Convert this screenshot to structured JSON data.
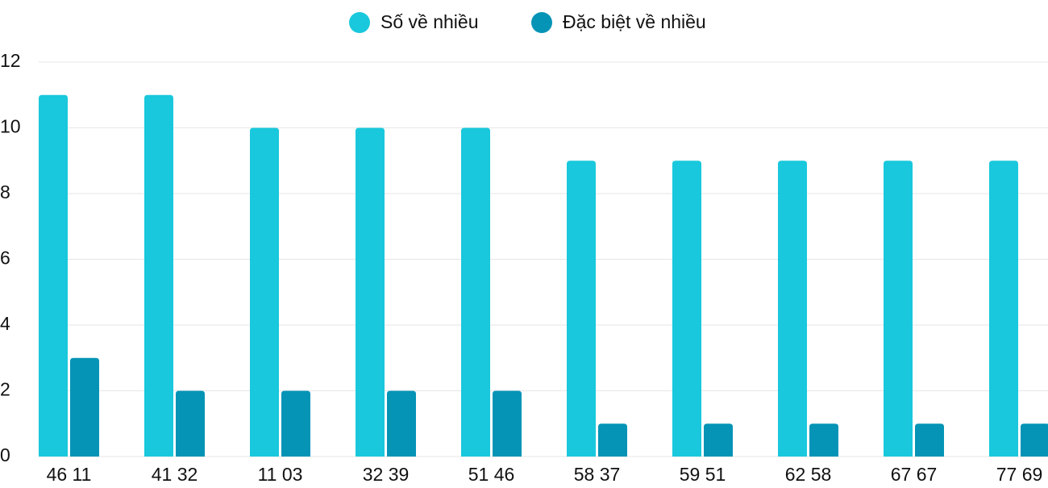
{
  "chart_data": {
    "type": "bar",
    "categories": [
      "46 11",
      "41 32",
      "11 03",
      "32 39",
      "51 46",
      "58 37",
      "59 51",
      "62 58",
      "67 67",
      "77 69"
    ],
    "series": [
      {
        "name": "Số về nhiều",
        "color": "#19c8dc",
        "values": [
          11,
          11,
          10,
          10,
          10,
          9,
          9,
          9,
          9,
          9
        ]
      },
      {
        "name": "Đặc biệt về nhiều",
        "color": "#0594b6",
        "values": [
          3,
          2,
          2,
          2,
          2,
          1,
          1,
          1,
          1,
          1
        ]
      }
    ],
    "ylim": [
      0,
      12
    ],
    "yticks": [
      0,
      2,
      4,
      6,
      8,
      10,
      12
    ],
    "grid": true,
    "legend": "top"
  }
}
